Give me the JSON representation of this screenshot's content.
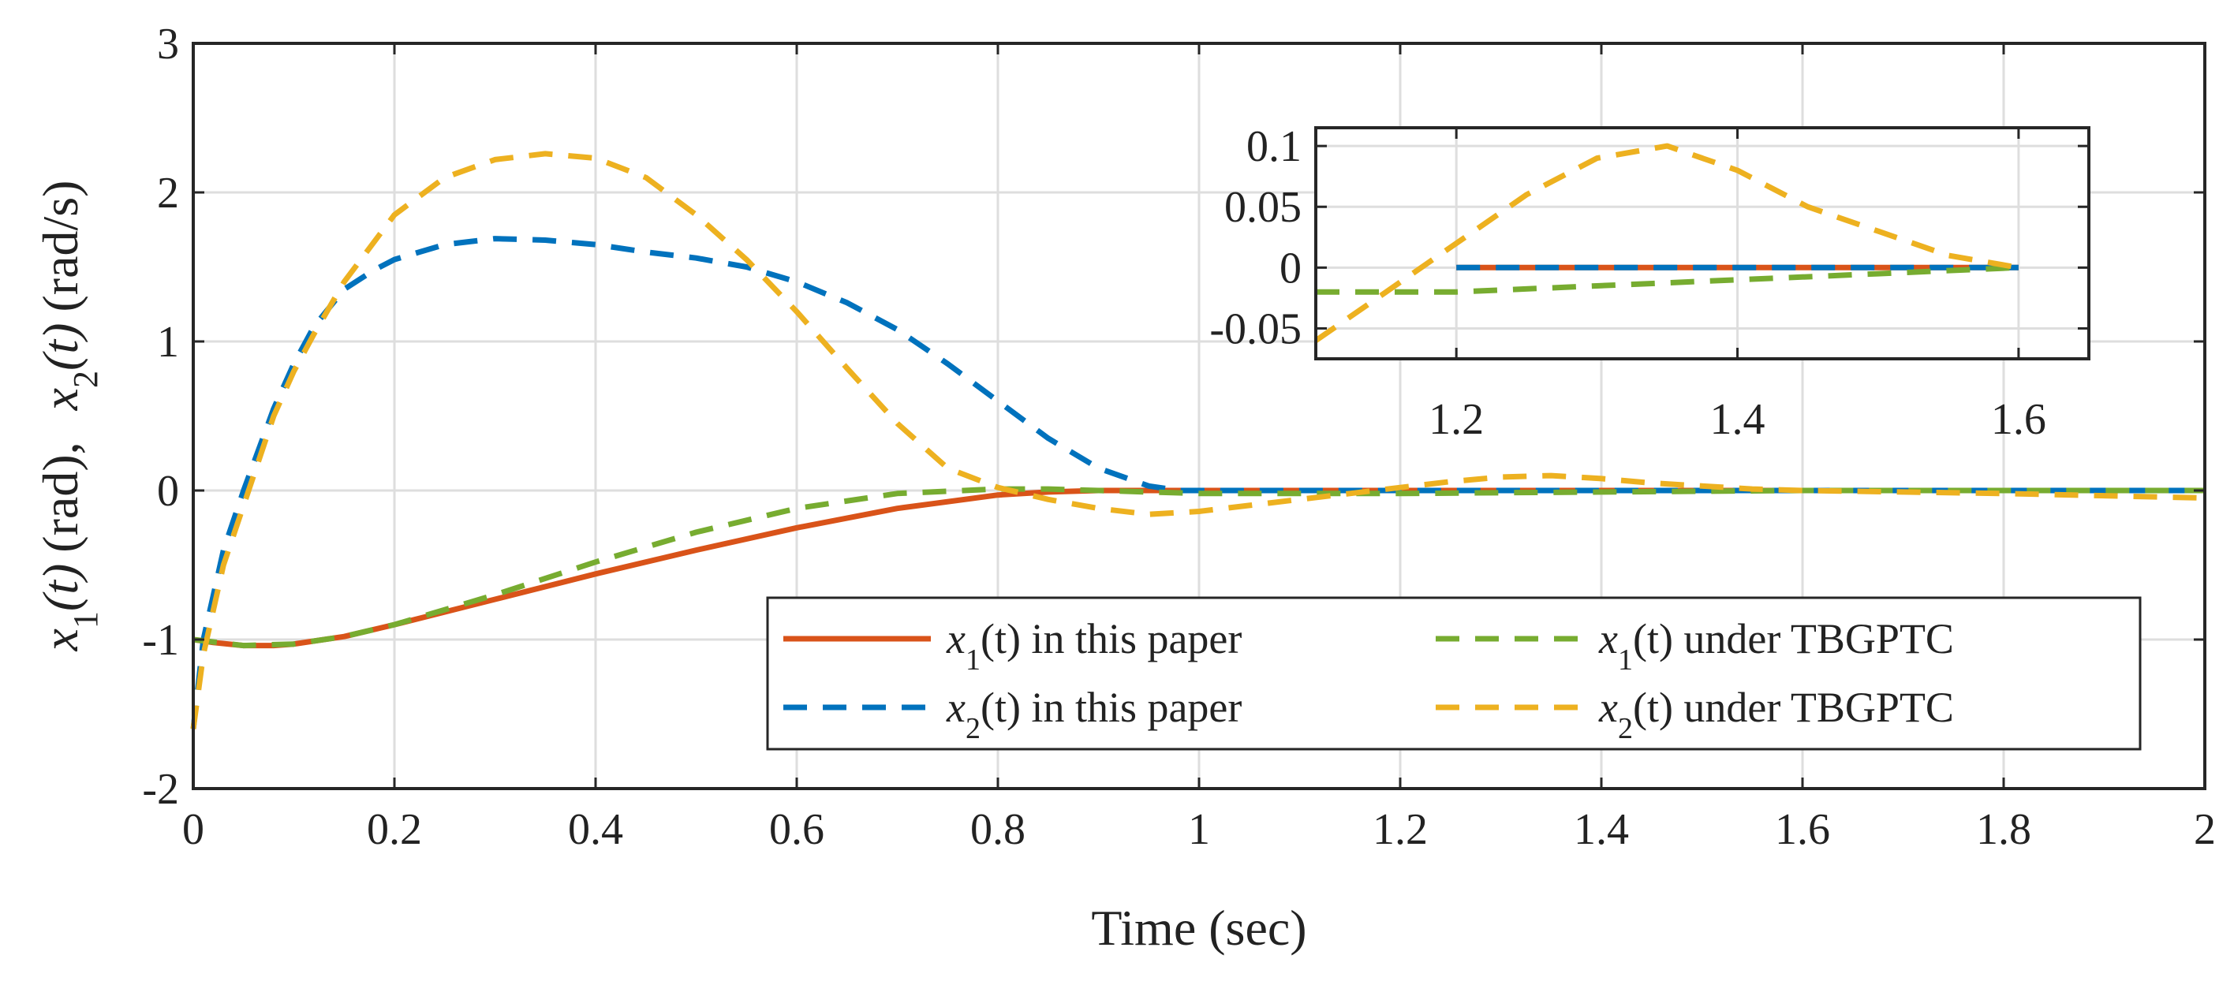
{
  "chart_data": {
    "type": "line",
    "xlabel": "Time (sec)",
    "ylabel": {
      "x1_var": "x",
      "x1_sub": "1",
      "x1_arg": "(t)",
      "x1_unit": "(rad),",
      "x2_var": "x",
      "x2_sub": "2",
      "x2_arg": "(t)",
      "x2_unit": "(rad/s)"
    },
    "xlim": [
      0,
      2
    ],
    "ylim": [
      -2,
      3
    ],
    "xticks": [
      0,
      0.2,
      0.4,
      0.6,
      0.8,
      1,
      1.2,
      1.4,
      1.6,
      1.8,
      2
    ],
    "xtick_labels": [
      "0",
      "0.2",
      "0.4",
      "0.6",
      "0.8",
      "1",
      "1.2",
      "1.4",
      "1.6",
      "1.8",
      "2"
    ],
    "yticks": [
      -2,
      -1,
      0,
      1,
      2,
      3
    ],
    "ytick_labels": [
      "-2",
      "-1",
      "0",
      "1",
      "2",
      "3"
    ],
    "grid": true,
    "series": [
      {
        "id": "x1-paper",
        "name": "x1(t) in this paper",
        "legend": {
          "var": "x",
          "sub": "1",
          "rest": "(t) in this paper"
        },
        "color": "#D95319",
        "style": "solid",
        "x": [
          0,
          0.02,
          0.05,
          0.08,
          0.1,
          0.15,
          0.2,
          0.3,
          0.4,
          0.5,
          0.6,
          0.7,
          0.8,
          0.85,
          0.9,
          1.0,
          1.2,
          1.4,
          1.6,
          1.8,
          2.0
        ],
        "y": [
          -1.0,
          -1.02,
          -1.04,
          -1.04,
          -1.03,
          -0.98,
          -0.9,
          -0.73,
          -0.56,
          -0.4,
          -0.25,
          -0.12,
          -0.03,
          -0.01,
          0.0,
          0.0,
          0.0,
          0.0,
          0.0,
          0.0,
          0.0
        ]
      },
      {
        "id": "x2-paper",
        "name": "x2(t) in this paper",
        "legend": {
          "var": "x",
          "sub": "2",
          "rest": "(t) in this paper"
        },
        "color": "#0072BD",
        "style": "dashed",
        "x": [
          0,
          0.01,
          0.03,
          0.05,
          0.08,
          0.1,
          0.12,
          0.15,
          0.18,
          0.2,
          0.25,
          0.3,
          0.35,
          0.4,
          0.45,
          0.5,
          0.55,
          0.6,
          0.65,
          0.7,
          0.75,
          0.8,
          0.85,
          0.9,
          0.95,
          0.98,
          1.0,
          1.2,
          1.4,
          1.6,
          1.8,
          2.0
        ],
        "y": [
          -1.6,
          -1.0,
          -0.4,
          0.0,
          0.55,
          0.85,
          1.1,
          1.35,
          1.48,
          1.55,
          1.65,
          1.69,
          1.68,
          1.65,
          1.6,
          1.56,
          1.5,
          1.4,
          1.26,
          1.08,
          0.85,
          0.6,
          0.35,
          0.15,
          0.03,
          0.0,
          0.0,
          0.0,
          0.0,
          0.0,
          0.0,
          0.0
        ]
      },
      {
        "id": "x1-tbgptc",
        "name": "x1(t) under TBGPTC",
        "legend": {
          "var": "x",
          "sub": "1",
          "rest": "(t) under TBGPTC"
        },
        "color": "#77AC30",
        "style": "dashed",
        "x": [
          0,
          0.05,
          0.1,
          0.15,
          0.2,
          0.3,
          0.4,
          0.5,
          0.6,
          0.7,
          0.8,
          0.85,
          0.9,
          1.0,
          1.1,
          1.2,
          1.3,
          1.4,
          1.5,
          1.6,
          1.8,
          2.0
        ],
        "y": [
          -1.0,
          -1.04,
          -1.03,
          -0.98,
          -0.9,
          -0.7,
          -0.48,
          -0.28,
          -0.12,
          -0.02,
          0.01,
          0.01,
          0.0,
          -0.02,
          -0.02,
          -0.02,
          -0.015,
          -0.01,
          -0.005,
          0.0,
          0.0,
          0.0
        ]
      },
      {
        "id": "x2-tbgptc",
        "name": "x2(t) under TBGPTC",
        "legend": {
          "var": "x",
          "sub": "2",
          "rest": "(t) under TBGPTC"
        },
        "color": "#EDB120",
        "style": "dashed",
        "x": [
          0,
          0.01,
          0.03,
          0.05,
          0.08,
          0.1,
          0.12,
          0.15,
          0.2,
          0.25,
          0.3,
          0.35,
          0.4,
          0.45,
          0.5,
          0.55,
          0.6,
          0.65,
          0.7,
          0.75,
          0.8,
          0.85,
          0.9,
          0.95,
          1.0,
          1.05,
          1.1,
          1.15,
          1.2,
          1.25,
          1.3,
          1.35,
          1.4,
          1.45,
          1.5,
          1.55,
          1.6,
          1.7,
          1.8,
          2.0
        ],
        "y": [
          -1.6,
          -1.1,
          -0.5,
          -0.1,
          0.5,
          0.8,
          1.05,
          1.4,
          1.85,
          2.1,
          2.22,
          2.26,
          2.23,
          2.1,
          1.85,
          1.55,
          1.2,
          0.82,
          0.45,
          0.15,
          0.02,
          -0.06,
          -0.12,
          -0.16,
          -0.14,
          -0.1,
          -0.06,
          -0.02,
          0.02,
          0.06,
          0.09,
          0.1,
          0.08,
          0.05,
          0.03,
          0.01,
          0.0,
          -0.01,
          -0.02,
          -0.05
        ]
      }
    ],
    "inset": {
      "xlim": [
        1.1,
        1.65
      ],
      "ylim": [
        -0.075,
        0.115
      ],
      "xticks": [
        1.2,
        1.4,
        1.6
      ],
      "xtick_labels": [
        "1.2",
        "1.4",
        "1.6"
      ],
      "yticks": [
        -0.05,
        0,
        0.05,
        0.1
      ],
      "ytick_labels": [
        "-0.05",
        "0",
        "0.05",
        "0.1"
      ],
      "grid": true
    }
  }
}
